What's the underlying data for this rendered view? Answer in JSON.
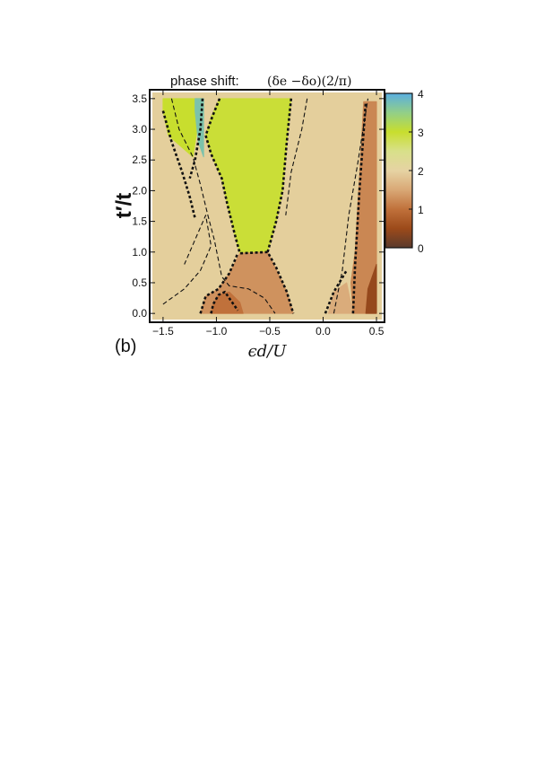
{
  "chart_data": {
    "type": "heatmap",
    "title": "phase shift:",
    "title_math": "(δe −δo)(2/π)",
    "xlabel": "ϵd/U",
    "ylabel": "t′/t",
    "panel_label": "(b)",
    "xlim": [
      -1.6,
      0.55
    ],
    "ylim": [
      -0.1,
      3.6
    ],
    "x_ticks": [
      -1.5,
      -1.0,
      -0.5,
      0.0,
      0.5
    ],
    "x_tick_labels": [
      "−1.5",
      "−1.0",
      "−0.5",
      "0.0",
      "0.5"
    ],
    "y_ticks": [
      0.0,
      0.5,
      1.0,
      1.5,
      2.0,
      2.5,
      3.0,
      3.5
    ],
    "y_tick_labels": [
      "0.0",
      "0.5",
      "1.0",
      "1.5",
      "2.0",
      "2.5",
      "3.0",
      "3.5"
    ],
    "colorbar": {
      "min": 0,
      "max": 4,
      "ticks": [
        0,
        1,
        2,
        3,
        4
      ],
      "tick_labels": [
        "0",
        "1",
        "2",
        "3",
        "4"
      ],
      "stops": [
        {
          "value": 0,
          "color": "#5a3a2c"
        },
        {
          "value": 0.5,
          "color": "#9c4a1a"
        },
        {
          "value": 1,
          "color": "#c0713b"
        },
        {
          "value": 1.5,
          "color": "#d9a876"
        },
        {
          "value": 2,
          "color": "#e6d3a3"
        },
        {
          "value": 2.5,
          "color": "#d8e08a"
        },
        {
          "value": 3,
          "color": "#c8de2e"
        },
        {
          "value": 3.5,
          "color": "#92cf88"
        },
        {
          "value": 4,
          "color": "#5aaee0"
        }
      ]
    },
    "regions": [
      {
        "value": 3.0,
        "points": [
          [
            -1.5,
            3.5
          ],
          [
            -1.13,
            3.5
          ],
          [
            -1.18,
            3.0
          ],
          [
            -1.22,
            2.55
          ],
          [
            -1.45,
            2.9
          ],
          [
            -1.5,
            3.3
          ]
        ]
      },
      {
        "value": 3.7,
        "points": [
          [
            -1.2,
            3.5
          ],
          [
            -1.12,
            3.5
          ],
          [
            -1.12,
            2.55
          ],
          [
            -1.17,
            2.8
          ],
          [
            -1.2,
            3.3
          ]
        ]
      },
      {
        "value": 2.95,
        "points": [
          [
            -0.97,
            3.5
          ],
          [
            -0.3,
            3.5
          ],
          [
            -0.34,
            2.8
          ],
          [
            -0.38,
            2.0
          ],
          [
            -0.44,
            1.5
          ],
          [
            -0.52,
            1.0
          ],
          [
            -0.78,
            0.98
          ],
          [
            -0.83,
            1.3
          ],
          [
            -0.9,
            1.8
          ],
          [
            -0.95,
            2.2
          ],
          [
            -1.05,
            2.6
          ],
          [
            -1.1,
            2.9
          ],
          [
            -1.05,
            3.2
          ]
        ]
      },
      {
        "value": 1.3,
        "points": [
          [
            -0.78,
            0.98
          ],
          [
            -0.52,
            1.0
          ],
          [
            -0.45,
            0.75
          ],
          [
            -0.34,
            0.35
          ],
          [
            -0.28,
            0.0
          ],
          [
            -1.15,
            0.0
          ],
          [
            -1.1,
            0.28
          ],
          [
            -0.98,
            0.4
          ],
          [
            -0.88,
            0.65
          ]
        ]
      },
      {
        "value": 1.0,
        "points": [
          [
            -1.05,
            0.0
          ],
          [
            -0.75,
            0.0
          ],
          [
            -0.78,
            0.18
          ],
          [
            -0.88,
            0.35
          ],
          [
            -0.98,
            0.3
          ],
          [
            -1.03,
            0.15
          ]
        ]
      },
      {
        "value": 1.55,
        "points": [
          [
            0.05,
            0.0
          ],
          [
            0.28,
            0.0
          ],
          [
            0.22,
            0.5
          ],
          [
            0.1,
            0.35
          ]
        ]
      },
      {
        "value": 1.2,
        "points": [
          [
            0.28,
            0.0
          ],
          [
            0.5,
            0.0
          ],
          [
            0.5,
            3.45
          ],
          [
            0.38,
            3.45
          ],
          [
            0.34,
            2.2
          ],
          [
            0.3,
            1.0
          ],
          [
            0.26,
            0.5
          ]
        ]
      },
      {
        "value": 0.45,
        "points": [
          [
            0.4,
            0.0
          ],
          [
            0.5,
            0.0
          ],
          [
            0.5,
            0.8
          ],
          [
            0.42,
            0.4
          ]
        ]
      }
    ],
    "boundaries": [
      {
        "style": "bold",
        "points": [
          [
            -1.5,
            3.3
          ],
          [
            -1.42,
            2.8
          ],
          [
            -1.32,
            2.3
          ],
          [
            -1.25,
            1.9
          ],
          [
            -1.2,
            1.55
          ]
        ]
      },
      {
        "style": "bold",
        "points": [
          [
            -1.13,
            3.5
          ],
          [
            -1.15,
            3.0
          ],
          [
            -1.2,
            2.5
          ],
          [
            -1.25,
            2.2
          ]
        ]
      },
      {
        "style": "bold",
        "points": [
          [
            -0.97,
            3.5
          ],
          [
            -1.04,
            3.2
          ],
          [
            -1.1,
            2.9
          ],
          [
            -1.05,
            2.6
          ],
          [
            -0.95,
            2.2
          ],
          [
            -0.9,
            1.8
          ],
          [
            -0.83,
            1.3
          ],
          [
            -0.78,
            0.98
          ],
          [
            -0.52,
            1.0
          ],
          [
            -0.44,
            0.75
          ],
          [
            -0.34,
            0.35
          ],
          [
            -0.28,
            0.0
          ]
        ]
      },
      {
        "style": "bold",
        "points": [
          [
            -0.3,
            3.5
          ],
          [
            -0.34,
            2.8
          ],
          [
            -0.38,
            2.0
          ],
          [
            -0.44,
            1.5
          ],
          [
            -0.52,
            1.0
          ]
        ]
      },
      {
        "style": "bold",
        "points": [
          [
            -1.15,
            0.0
          ],
          [
            -1.1,
            0.28
          ],
          [
            -0.98,
            0.4
          ],
          [
            -0.88,
            0.65
          ],
          [
            -0.8,
            0.98
          ]
        ]
      },
      {
        "style": "bold",
        "points": [
          [
            -1.05,
            0.0
          ],
          [
            -1.03,
            0.15
          ],
          [
            -0.98,
            0.3
          ],
          [
            -0.92,
            0.35
          ],
          [
            -0.88,
            0.25
          ],
          [
            -0.8,
            0.05
          ]
        ]
      },
      {
        "style": "bold",
        "points": [
          [
            0.02,
            0.0
          ],
          [
            0.1,
            0.35
          ],
          [
            0.22,
            0.7
          ]
        ]
      },
      {
        "style": "bold",
        "points": [
          [
            0.28,
            0.0
          ],
          [
            0.3,
            0.8
          ],
          [
            0.34,
            2.0
          ],
          [
            0.4,
            3.45
          ]
        ]
      },
      {
        "style": "thin",
        "points": [
          [
            -1.5,
            0.15
          ],
          [
            -1.3,
            0.4
          ],
          [
            -1.15,
            0.7
          ],
          [
            -1.05,
            1.1
          ],
          [
            -1.1,
            1.6
          ],
          [
            -1.2,
            1.2
          ],
          [
            -1.3,
            0.8
          ]
        ]
      },
      {
        "style": "thin",
        "points": [
          [
            -1.42,
            3.5
          ],
          [
            -1.35,
            3.0
          ],
          [
            -1.22,
            2.55
          ],
          [
            -1.15,
            2.1
          ],
          [
            -1.08,
            1.6
          ],
          [
            -1.02,
            1.2
          ],
          [
            -0.95,
            0.6
          ],
          [
            -0.88,
            0.45
          ],
          [
            -0.7,
            0.4
          ],
          [
            -0.55,
            0.25
          ],
          [
            -0.45,
            0.0
          ]
        ]
      },
      {
        "style": "thin",
        "points": [
          [
            -0.15,
            3.5
          ],
          [
            -0.2,
            3.0
          ],
          [
            -0.3,
            2.3
          ],
          [
            -0.35,
            1.6
          ]
        ]
      },
      {
        "style": "thin",
        "points": [
          [
            0.1,
            0.0
          ],
          [
            0.18,
            0.7
          ],
          [
            0.24,
            1.6
          ],
          [
            0.32,
            2.4
          ],
          [
            0.42,
            3.5
          ]
        ]
      }
    ]
  }
}
